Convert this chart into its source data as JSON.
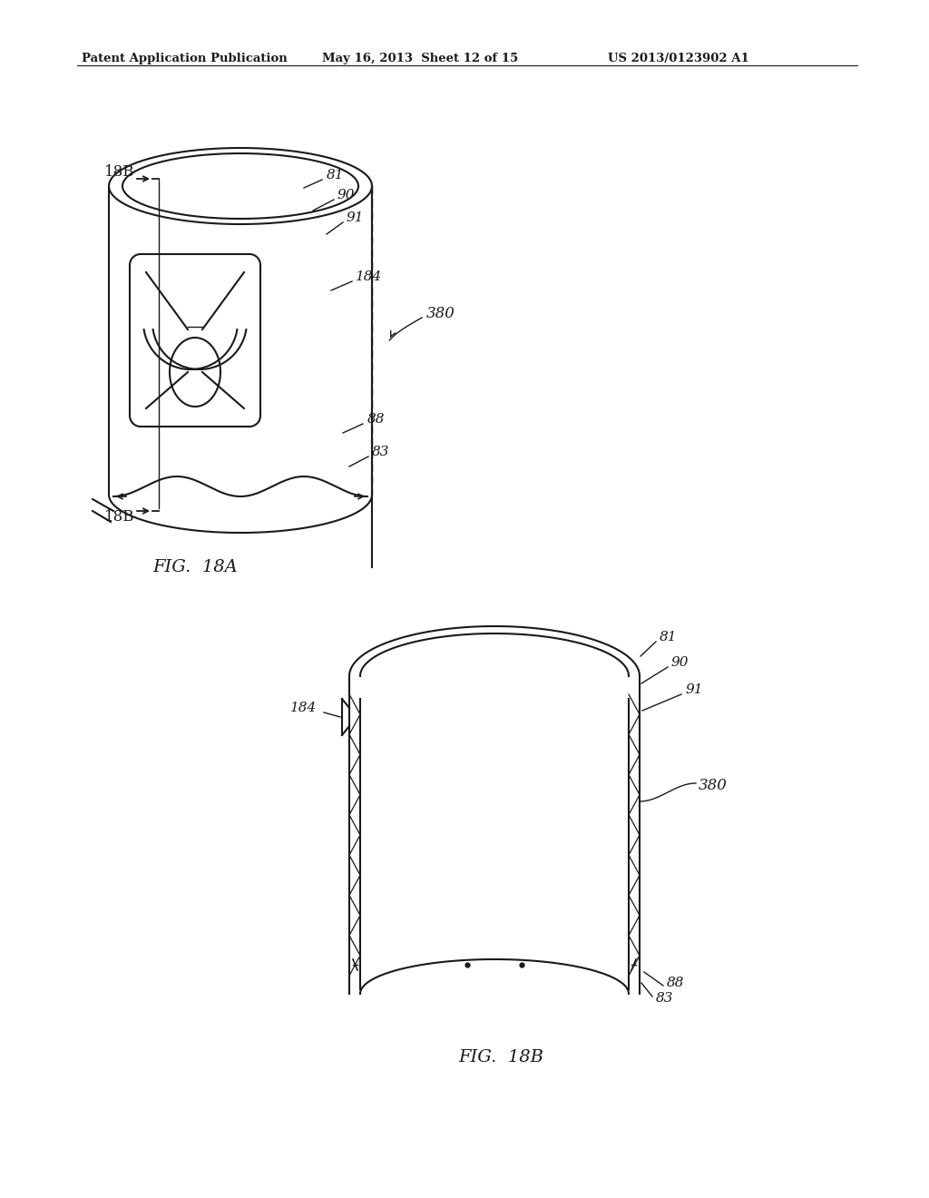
{
  "bg_color": "#ffffff",
  "line_color": "#1a1a1a",
  "header_text": "Patent Application Publication",
  "header_date": "May 16, 2013  Sheet 12 of 15",
  "header_patent": "US 2013/0123902 A1",
  "fig18a_label": "FIG.  18A",
  "fig18b_label": "FIG.  18B",
  "label_18B_top": "18B",
  "label_18B_bottom": "18B",
  "label_81": "81",
  "label_90": "90",
  "label_91": "91",
  "label_184_top": "184",
  "label_88_top": "88",
  "label_83_top": "83",
  "label_380_top": "380",
  "label_184_bot": "184",
  "label_81_bot": "81",
  "label_90_bot": "90",
  "label_91_bot": "91",
  "label_380_bot": "380",
  "label_88_bot": "88",
  "label_83_bot": "83"
}
